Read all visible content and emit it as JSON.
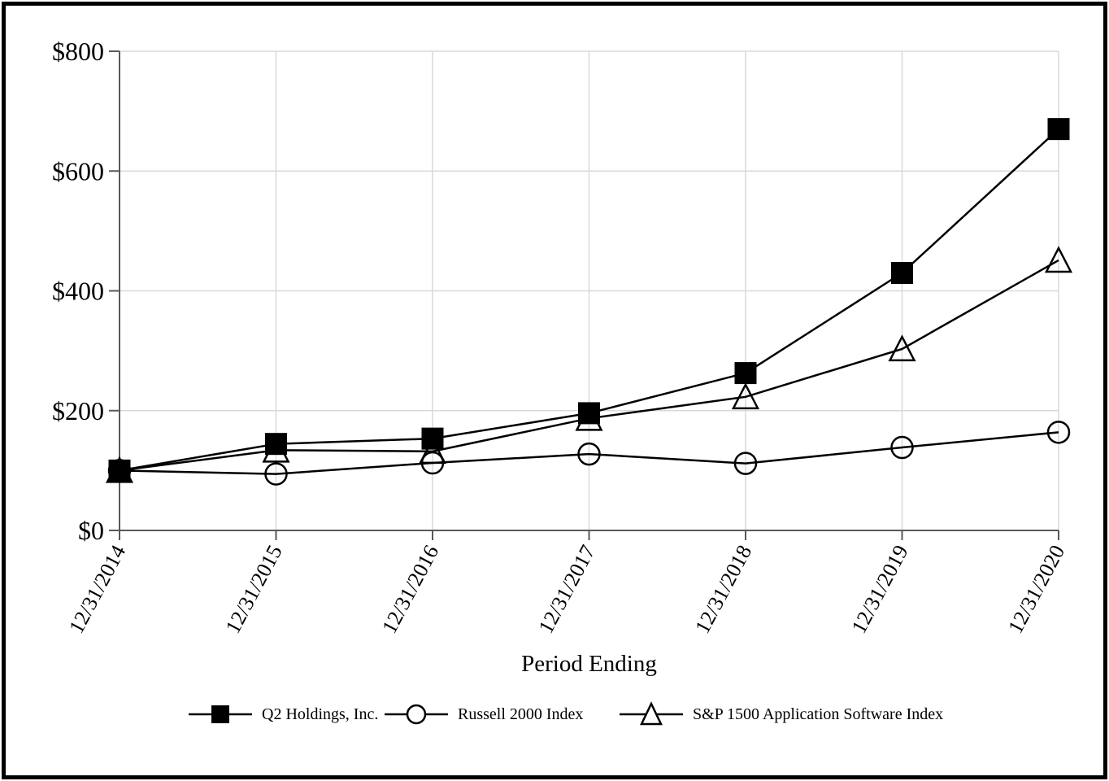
{
  "page": {
    "background": "#ffffff",
    "border_color": "#000000"
  },
  "chart_data": {
    "type": "line",
    "title": "",
    "xlabel": "Period Ending",
    "ylabel": "",
    "ylim": [
      0,
      800
    ],
    "grid": true,
    "legend_position": "bottom",
    "colors": {
      "series": "#000000",
      "gridline": "#d9d9d9",
      "axis": "#595959",
      "text": "#000000"
    },
    "y_ticks": [
      {
        "value": 0,
        "label": "$0"
      },
      {
        "value": 200,
        "label": "$200"
      },
      {
        "value": 400,
        "label": "$400"
      },
      {
        "value": 600,
        "label": "$600"
      },
      {
        "value": 800,
        "label": "$800"
      }
    ],
    "categories": [
      "12/31/2014",
      "12/31/2015",
      "12/31/2016",
      "12/31/2017",
      "12/31/2018",
      "12/31/2019",
      "12/31/2020"
    ],
    "series": [
      {
        "name": "Q2 Holdings, Inc.",
        "marker": "square",
        "marker_fill": "filled",
        "values": [
          100,
          144.4,
          153.3,
          195.7,
          262.7,
          429.8,
          670.1
        ]
      },
      {
        "name": "Russell 2000 Index",
        "marker": "circle",
        "marker_fill": "open",
        "values": [
          100,
          94.3,
          112.7,
          127.5,
          111.9,
          138.5,
          163.9
        ]
      },
      {
        "name": "S&P 1500 Application Software Index",
        "marker": "triangle",
        "marker_fill": "open",
        "values": [
          100,
          134,
          132,
          187,
          223,
          303,
          451
        ]
      }
    ]
  }
}
